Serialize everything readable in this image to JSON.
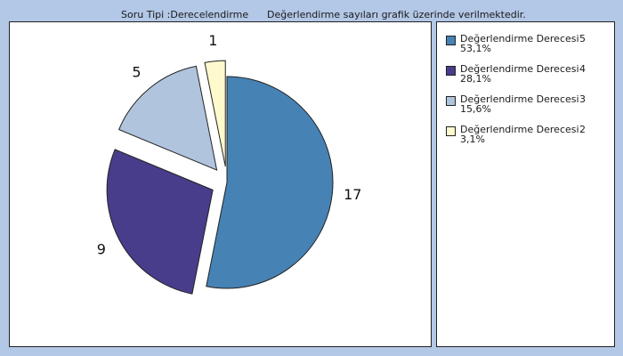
{
  "header": {
    "question_type": "Soru Tipi :Derecelendirme",
    "note": "Değerlendirme sayıları grafik üzerinde verilmektedir."
  },
  "chart_data": {
    "type": "pie",
    "categories": [
      "Değerlendirme Derecesi 5",
      "Değerlendirme Derecesi 4",
      "Değerlendirme Derecesi 3",
      "Değerlendirme Derecesi 2"
    ],
    "values": [
      17,
      9,
      5,
      1
    ],
    "data_labels": [
      "17",
      "9",
      "5",
      "1"
    ],
    "colors": [
      "#4682b4",
      "#483d8b",
      "#b0c4de",
      "#fffacd"
    ],
    "exploded": [
      false,
      true,
      true,
      true
    ],
    "legend_placement": "right"
  },
  "legend": {
    "items": [
      {
        "label": "Değerlendirme Derecesi",
        "value": "5",
        "percent": "53,1%",
        "color": "#4682b4"
      },
      {
        "label": "Değerlendirme Derecesi",
        "value": "4",
        "percent": "28,1%",
        "color": "#483d8b"
      },
      {
        "label": "Değerlendirme Derecesi",
        "value": "3",
        "percent": "15,6%",
        "color": "#b0c4de"
      },
      {
        "label": "Değerlendirme Derecesi",
        "value": "2",
        "percent": "3,1%",
        "color": "#fffacd"
      }
    ]
  }
}
